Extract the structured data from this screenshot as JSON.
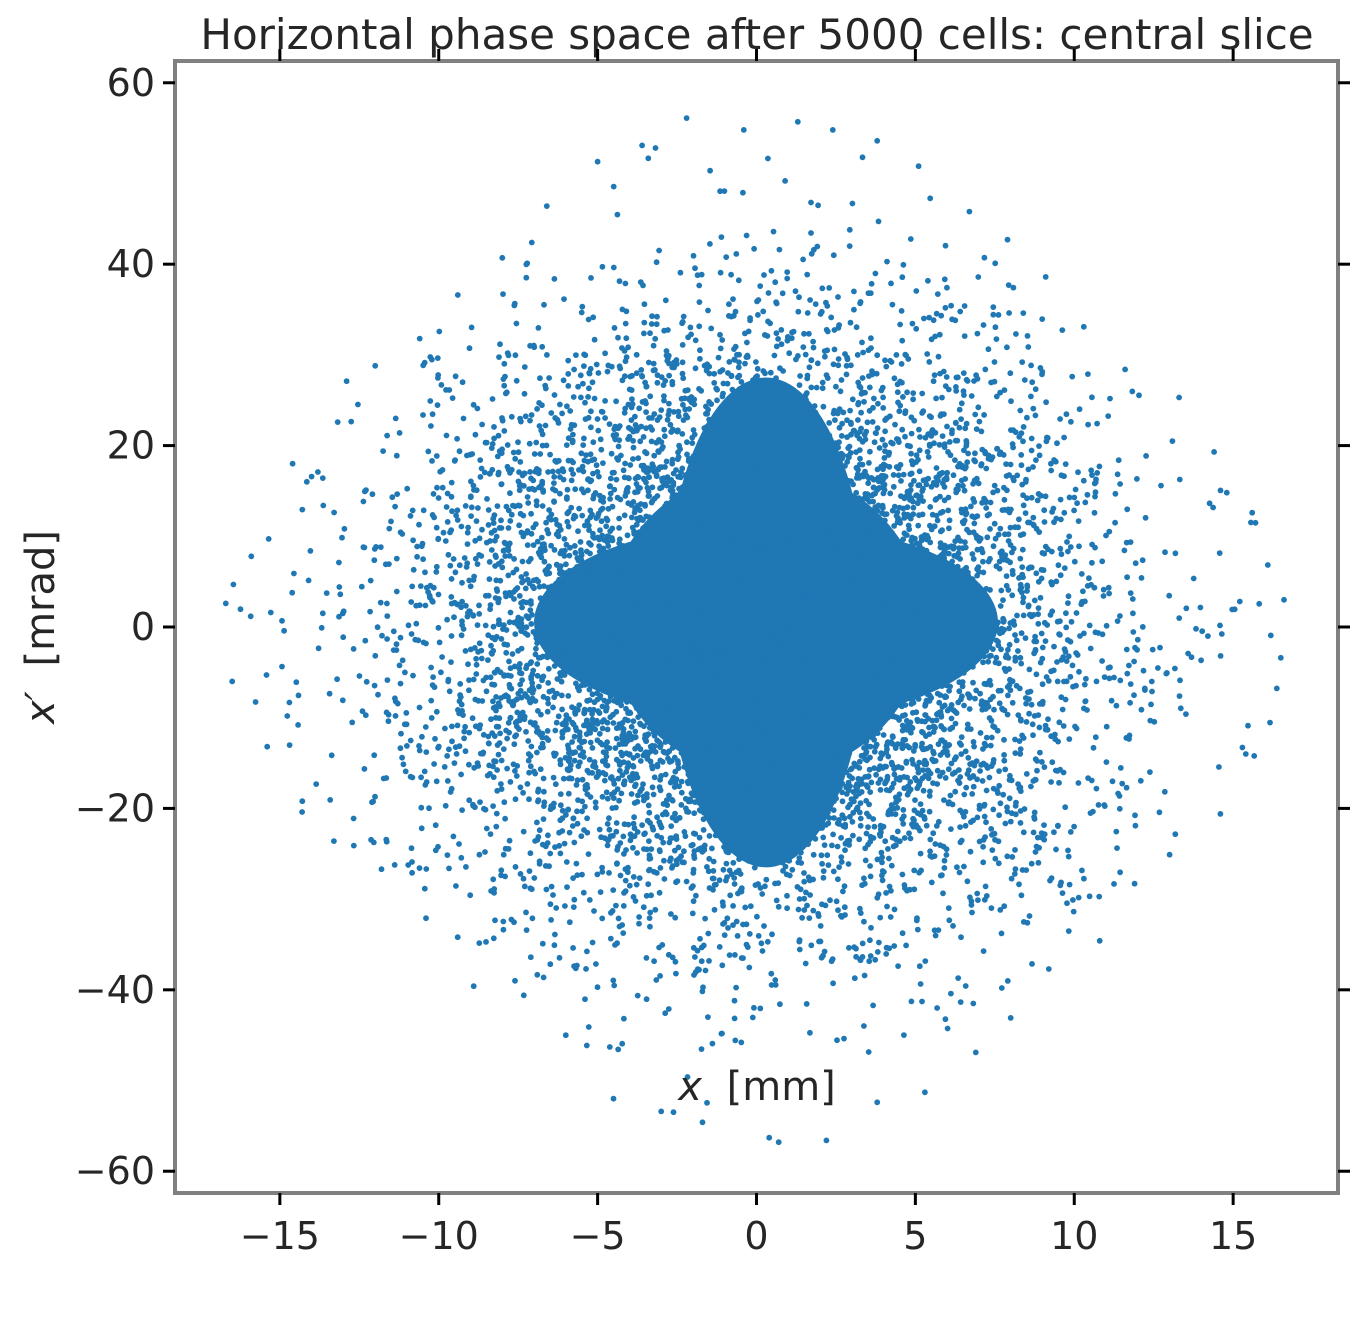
{
  "chart_data": {
    "type": "scatter",
    "title": "Horizontal phase space after 5000 cells: central slice",
    "xlabel_parts": {
      "var": "x",
      "unit": "[mm]"
    },
    "ylabel_parts": {
      "var": "x′",
      "unit": "[mrad]"
    },
    "xlim": [
      -18.3,
      18.3
    ],
    "ylim": [
      -62.4,
      62.4
    ],
    "xticks": [
      -15,
      -10,
      -5,
      0,
      5,
      10,
      15
    ],
    "yticks": [
      -60,
      -40,
      -20,
      0,
      20,
      40,
      60
    ],
    "xtick_labels": [
      "−15",
      "−10",
      "−5",
      "0",
      "5",
      "10",
      "15"
    ],
    "ytick_labels": [
      "−60",
      "−40",
      "−20",
      "0",
      "20",
      "40",
      "60"
    ],
    "marker_color": "#1f77b4",
    "grid": false,
    "legend": "none",
    "series": [
      {
        "distribution": "dense blob centred near (0, 0) with diamond-shaped halo",
        "x_range": [
          -16.7,
          16.6
        ],
        "y_range": [
          -56.8,
          56.1
        ],
        "points": [
          [
            -16.7,
            2.6
          ],
          [
            -16.5,
            -6.0
          ],
          [
            -15.9,
            7.8
          ],
          [
            -15.4,
            -13.2
          ],
          [
            -14.6,
            18.0
          ],
          [
            -14.3,
            -20.4
          ],
          [
            -13.3,
            -23.6
          ],
          [
            -12.9,
            27.1
          ],
          [
            -12.0,
            28.8
          ],
          [
            -11.8,
            -26.7
          ],
          [
            -10.6,
            31.8
          ],
          [
            -10.4,
            -32.1
          ],
          [
            -9.4,
            36.6
          ],
          [
            -8.9,
            -39.6
          ],
          [
            -8.0,
            40.7
          ],
          [
            -7.6,
            -39.0
          ],
          [
            -6.6,
            46.4
          ],
          [
            -6.0,
            -45.0
          ],
          [
            -5.0,
            51.3
          ],
          [
            -4.5,
            -52.0
          ],
          [
            -3.6,
            53.1
          ],
          [
            -3.0,
            -53.4
          ],
          [
            -2.2,
            56.1
          ],
          [
            -1.7,
            -54.6
          ],
          [
            -0.4,
            54.8
          ],
          [
            0.4,
            -56.3
          ],
          [
            1.3,
            55.7
          ],
          [
            0.7,
            -56.8
          ],
          [
            2.4,
            54.8
          ],
          [
            2.2,
            -56.6
          ],
          [
            3.8,
            53.6
          ],
          [
            3.8,
            -52.4
          ],
          [
            5.1,
            50.8
          ],
          [
            5.3,
            -51.3
          ],
          [
            6.7,
            45.8
          ],
          [
            6.9,
            -46.9
          ],
          [
            7.9,
            42.7
          ],
          [
            8.0,
            -43.1
          ],
          [
            9.1,
            38.6
          ],
          [
            9.2,
            -37.7
          ],
          [
            10.3,
            33.1
          ],
          [
            10.8,
            -34.6
          ],
          [
            11.6,
            28.4
          ],
          [
            11.9,
            -28.3
          ],
          [
            13.3,
            25.3
          ],
          [
            13.0,
            -25.1
          ],
          [
            14.4,
            19.3
          ],
          [
            14.6,
            -20.6
          ],
          [
            15.6,
            12.6
          ],
          [
            15.4,
            -14.0
          ],
          [
            16.6,
            3.0
          ],
          [
            16.5,
            -3.4
          ]
        ]
      }
    ]
  }
}
